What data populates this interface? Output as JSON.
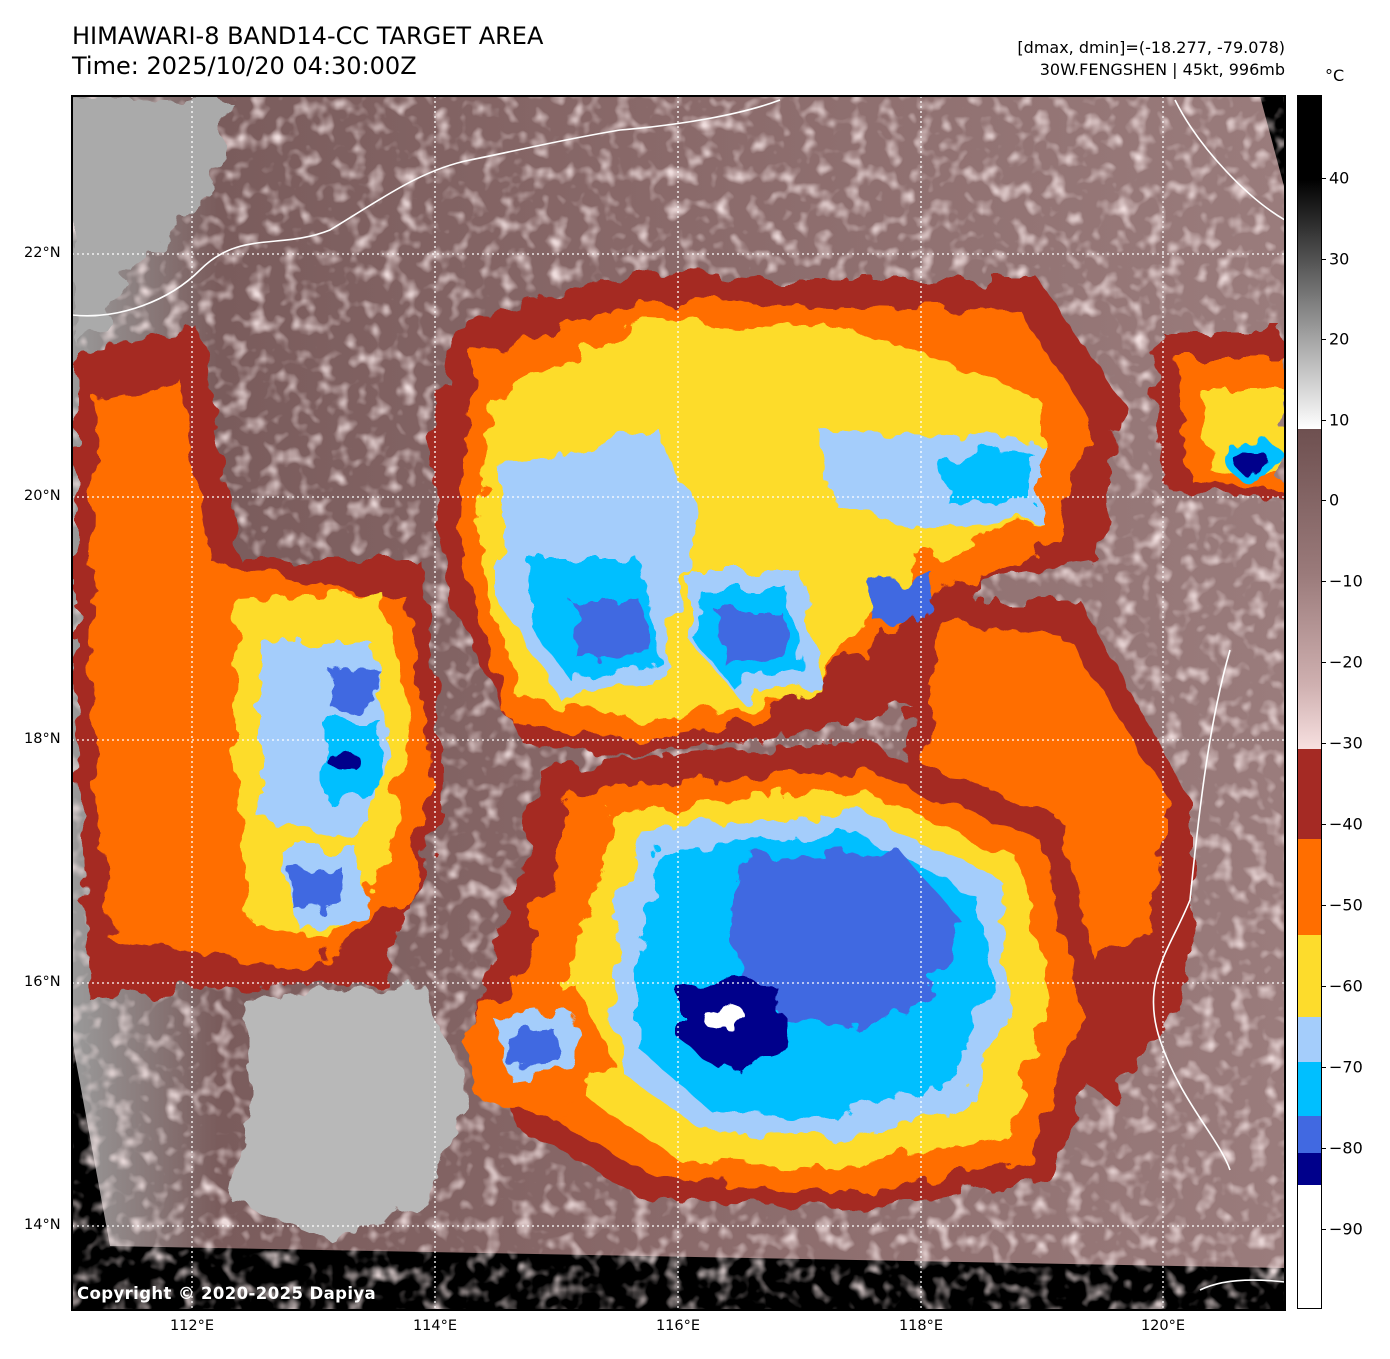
{
  "header": {
    "title_line1": "HIMAWARI-8 BAND14-CC TARGET AREA",
    "title_line2": "Time: 2025/10/20 04:30:00Z",
    "info_line1": "[dmax, dmin]=(-18.277, -79.078)",
    "info_line2": "30W.FENGSHEN | 45kt, 996mb"
  },
  "map": {
    "copyright": "Copyright © 2020-2025 Dapiya",
    "lat_labels": [
      "22°N",
      "20°N",
      "18°N",
      "16°N",
      "14°N"
    ],
    "lon_labels": [
      "112°E",
      "114°E",
      "116°E",
      "118°E",
      "120°E"
    ]
  },
  "colorbar": {
    "unit": "°C",
    "ticks": [
      "40",
      "30",
      "20",
      "10",
      "0",
      "−10",
      "−20",
      "−30",
      "−40",
      "−50",
      "−60",
      "−70",
      "−80",
      "−90"
    ],
    "colors": {
      "overshoot": "#ffffff",
      "deep_blue": "#00008b",
      "royal_blue": "#4169e1",
      "sky_blue": "#00bfff",
      "light_blue": "#a4cdfb",
      "yellow": "#fddc2c",
      "orange": "#ff6e00",
      "red_brown": "#a52a24",
      "pink": "#f5d6d6",
      "mauve": "#7a5c5c",
      "gray_dark": "#101010"
    }
  }
}
